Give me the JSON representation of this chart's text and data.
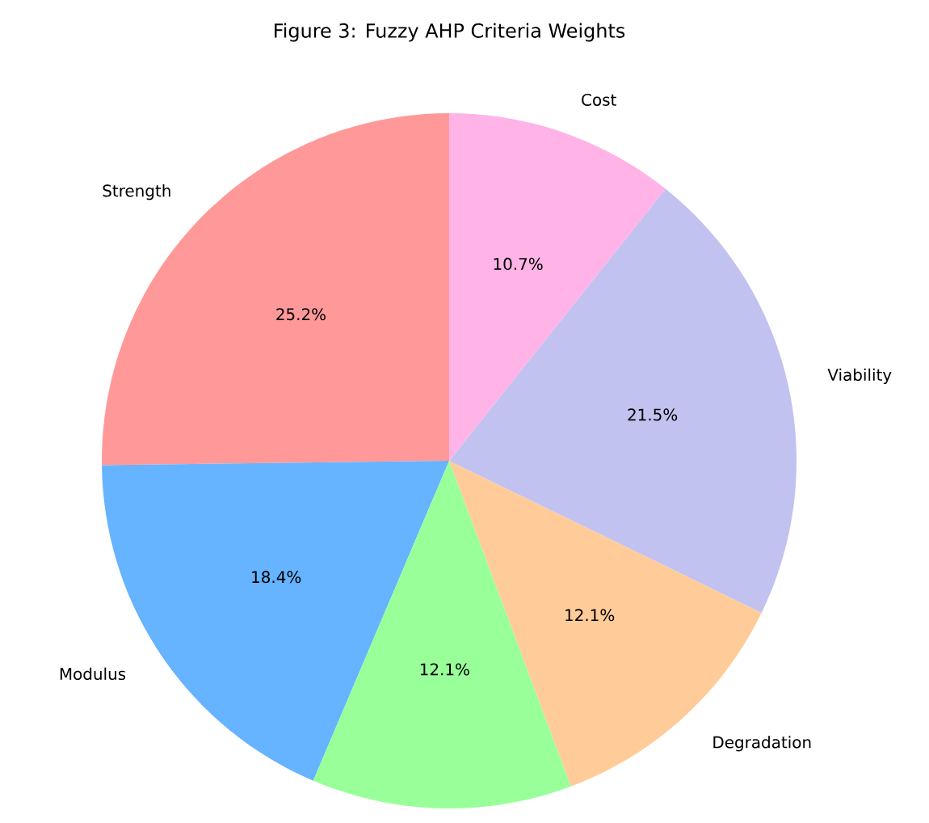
{
  "chart_data": {
    "type": "pie",
    "title": "Figure 3: Fuzzy AHP Criteria Weights",
    "categories": [
      "Strength",
      "Modulus",
      null,
      "Degradation",
      "Viability",
      "Cost"
    ],
    "values": [
      25.2,
      18.4,
      12.1,
      12.1,
      21.5,
      10.7
    ],
    "colors": [
      "#ff9999",
      "#66b3ff",
      "#99ff99",
      "#ffcc99",
      "#c2c2f0",
      "#ffb3e6"
    ],
    "value_labels": [
      "25.2%",
      "18.4%",
      "12.1%",
      "12.1%",
      "21.5%",
      "10.7%"
    ]
  }
}
